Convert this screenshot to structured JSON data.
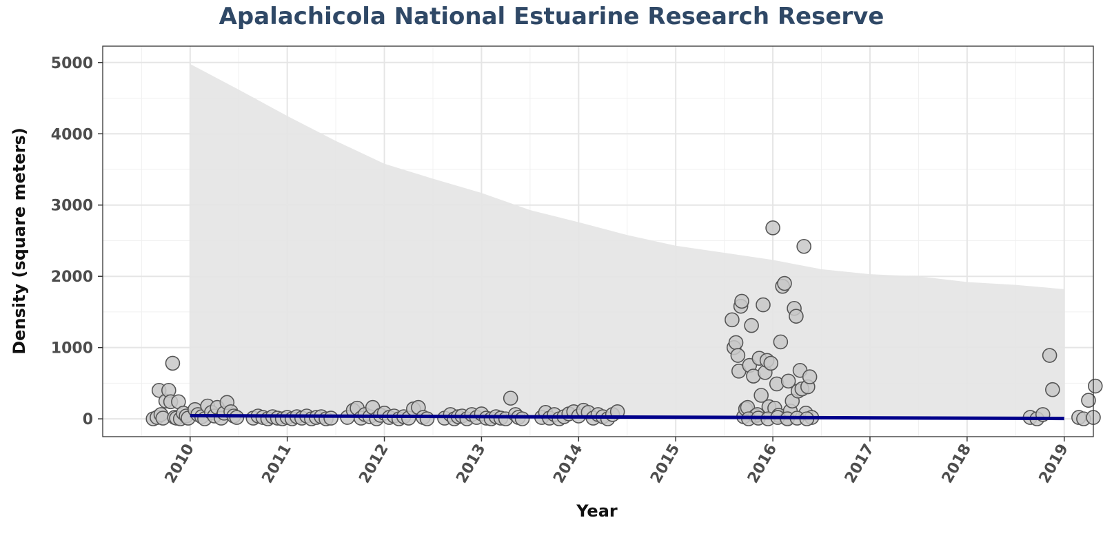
{
  "chart_data": {
    "type": "scatter",
    "title": "Apalachicola National Estuarine Research Reserve",
    "xlabel": "Year",
    "ylabel": "Density (square meters)",
    "xlim": [
      2009.1,
      2019.3
    ],
    "ylim": [
      -250,
      5230
    ],
    "x_ticks": [
      2010,
      2011,
      2012,
      2013,
      2014,
      2015,
      2016,
      2017,
      2018,
      2019
    ],
    "y_ticks": [
      0,
      1000,
      2000,
      3000,
      4000,
      5000
    ],
    "grid": true,
    "colors": {
      "title": "#2f4866",
      "points_fill": "#c8c8c8",
      "points_stroke": "#555555",
      "trend": "#00008b",
      "ribbon": "#e4e4e4"
    },
    "trend_line": {
      "x": [
        2010,
        2019
      ],
      "y": [
        45,
        5
      ]
    },
    "confidence_band": {
      "x": [
        2010,
        2010.5,
        2011,
        2011.5,
        2012,
        2012.5,
        2013,
        2013.5,
        2014,
        2014.5,
        2015,
        2015.5,
        2016,
        2016.5,
        2017,
        2017.5,
        2018,
        2018.5,
        2019
      ],
      "upper": [
        4980,
        4620,
        4250,
        3900,
        3580,
        3370,
        3170,
        2930,
        2760,
        2580,
        2430,
        2330,
        2230,
        2100,
        2030,
        2000,
        1920,
        1880,
        1820
      ],
      "lower": [
        0,
        0,
        0,
        0,
        0,
        0,
        0,
        0,
        0,
        0,
        0,
        0,
        0,
        0,
        0,
        0,
        0,
        0,
        0
      ]
    },
    "points": [
      [
        2009.62,
        0
      ],
      [
        2009.66,
        20
      ],
      [
        2009.68,
        400
      ],
      [
        2009.7,
        60
      ],
      [
        2009.72,
        10
      ],
      [
        2009.75,
        250
      ],
      [
        2009.78,
        400
      ],
      [
        2009.8,
        240
      ],
      [
        2009.82,
        780
      ],
      [
        2009.84,
        20
      ],
      [
        2009.86,
        10
      ],
      [
        2009.88,
        240
      ],
      [
        2009.9,
        0
      ],
      [
        2009.93,
        80
      ],
      [
        2009.96,
        40
      ],
      [
        2009.98,
        10
      ],
      [
        2010.05,
        130
      ],
      [
        2010.08,
        60
      ],
      [
        2010.12,
        30
      ],
      [
        2010.15,
        0
      ],
      [
        2010.18,
        180
      ],
      [
        2010.22,
        90
      ],
      [
        2010.25,
        40
      ],
      [
        2010.28,
        160
      ],
      [
        2010.32,
        10
      ],
      [
        2010.35,
        80
      ],
      [
        2010.38,
        230
      ],
      [
        2010.42,
        100
      ],
      [
        2010.45,
        40
      ],
      [
        2010.48,
        20
      ],
      [
        2010.65,
        10
      ],
      [
        2010.7,
        40
      ],
      [
        2010.75,
        20
      ],
      [
        2010.8,
        0
      ],
      [
        2010.85,
        30
      ],
      [
        2010.9,
        10
      ],
      [
        2010.95,
        0
      ],
      [
        2011.0,
        20
      ],
      [
        2011.05,
        0
      ],
      [
        2011.1,
        30
      ],
      [
        2011.15,
        10
      ],
      [
        2011.2,
        40
      ],
      [
        2011.25,
        0
      ],
      [
        2011.3,
        20
      ],
      [
        2011.35,
        30
      ],
      [
        2011.4,
        0
      ],
      [
        2011.45,
        10
      ],
      [
        2011.62,
        20
      ],
      [
        2011.68,
        120
      ],
      [
        2011.72,
        150
      ],
      [
        2011.76,
        10
      ],
      [
        2011.8,
        60
      ],
      [
        2011.85,
        30
      ],
      [
        2011.88,
        160
      ],
      [
        2011.92,
        0
      ],
      [
        2011.96,
        50
      ],
      [
        2012.0,
        80
      ],
      [
        2012.05,
        20
      ],
      [
        2012.1,
        40
      ],
      [
        2012.15,
        0
      ],
      [
        2012.2,
        30
      ],
      [
        2012.25,
        10
      ],
      [
        2012.3,
        140
      ],
      [
        2012.35,
        160
      ],
      [
        2012.4,
        20
      ],
      [
        2012.44,
        0
      ],
      [
        2012.62,
        10
      ],
      [
        2012.68,
        60
      ],
      [
        2012.72,
        0
      ],
      [
        2012.76,
        30
      ],
      [
        2012.8,
        40
      ],
      [
        2012.85,
        0
      ],
      [
        2012.9,
        60
      ],
      [
        2012.95,
        20
      ],
      [
        2013.0,
        70
      ],
      [
        2013.05,
        10
      ],
      [
        2013.1,
        0
      ],
      [
        2013.15,
        30
      ],
      [
        2013.2,
        10
      ],
      [
        2013.25,
        0
      ],
      [
        2013.3,
        290
      ],
      [
        2013.35,
        60
      ],
      [
        2013.38,
        20
      ],
      [
        2013.42,
        0
      ],
      [
        2013.62,
        20
      ],
      [
        2013.66,
        90
      ],
      [
        2013.7,
        10
      ],
      [
        2013.75,
        60
      ],
      [
        2013.8,
        0
      ],
      [
        2013.85,
        30
      ],
      [
        2013.9,
        70
      ],
      [
        2013.95,
        100
      ],
      [
        2014.0,
        40
      ],
      [
        2014.05,
        120
      ],
      [
        2014.1,
        90
      ],
      [
        2014.15,
        10
      ],
      [
        2014.2,
        60
      ],
      [
        2014.25,
        30
      ],
      [
        2014.3,
        0
      ],
      [
        2014.35,
        60
      ],
      [
        2014.4,
        100
      ],
      [
        2015.58,
        1390
      ],
      [
        2015.6,
        1000
      ],
      [
        2015.62,
        1070
      ],
      [
        2015.64,
        890
      ],
      [
        2015.65,
        670
      ],
      [
        2015.67,
        1580
      ],
      [
        2015.68,
        1650
      ],
      [
        2015.7,
        30
      ],
      [
        2015.72,
        140
      ],
      [
        2015.74,
        160
      ],
      [
        2015.76,
        750
      ],
      [
        2015.78,
        1310
      ],
      [
        2015.8,
        600
      ],
      [
        2015.82,
        40
      ],
      [
        2015.84,
        60
      ],
      [
        2015.86,
        850
      ],
      [
        2015.88,
        330
      ],
      [
        2015.9,
        1600
      ],
      [
        2015.92,
        650
      ],
      [
        2015.94,
        820
      ],
      [
        2015.96,
        170
      ],
      [
        2015.98,
        780
      ],
      [
        2016.0,
        2680
      ],
      [
        2016.02,
        150
      ],
      [
        2016.04,
        490
      ],
      [
        2016.06,
        50
      ],
      [
        2016.08,
        1080
      ],
      [
        2016.1,
        1860
      ],
      [
        2016.12,
        1900
      ],
      [
        2016.14,
        10
      ],
      [
        2016.16,
        530
      ],
      [
        2016.18,
        110
      ],
      [
        2016.2,
        250
      ],
      [
        2016.22,
        1550
      ],
      [
        2016.24,
        1440
      ],
      [
        2016.26,
        390
      ],
      [
        2016.28,
        680
      ],
      [
        2016.3,
        420
      ],
      [
        2016.32,
        2420
      ],
      [
        2016.34,
        80
      ],
      [
        2016.36,
        450
      ],
      [
        2016.38,
        590
      ],
      [
        2016.4,
        20
      ],
      [
        2015.75,
        0
      ],
      [
        2015.85,
        10
      ],
      [
        2015.95,
        0
      ],
      [
        2016.05,
        20
      ],
      [
        2016.15,
        0
      ],
      [
        2016.25,
        10
      ],
      [
        2016.35,
        0
      ],
      [
        2018.65,
        20
      ],
      [
        2018.72,
        0
      ],
      [
        2018.78,
        60
      ],
      [
        2018.85,
        890
      ],
      [
        2018.88,
        410
      ],
      [
        2019.15,
        20
      ],
      [
        2019.2,
        0
      ],
      [
        2019.25,
        260
      ],
      [
        2019.3,
        20
      ],
      [
        2019.32,
        460
      ]
    ]
  }
}
